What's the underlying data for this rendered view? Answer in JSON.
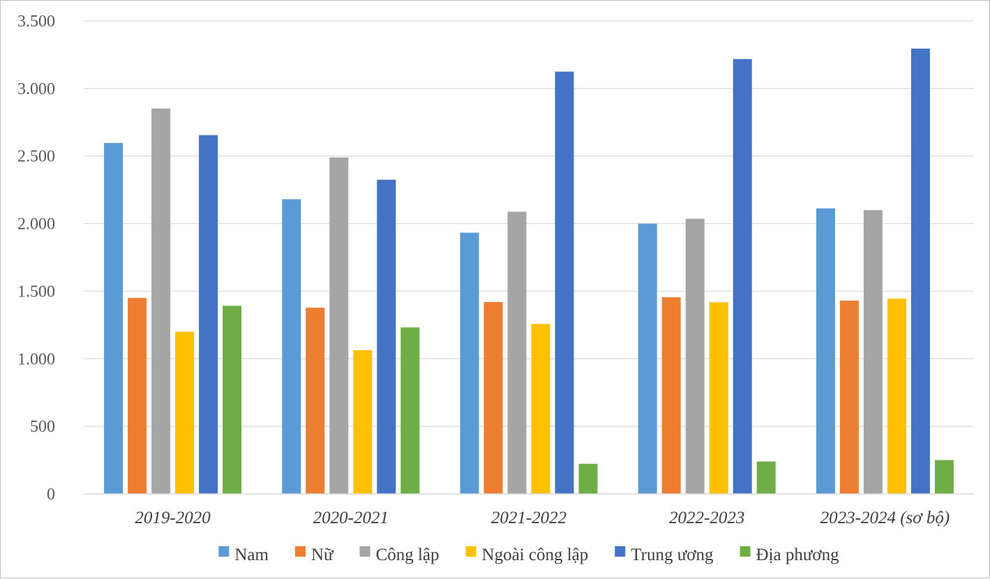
{
  "chart_data": {
    "type": "bar",
    "title": "",
    "xlabel": "",
    "ylabel": "",
    "ylim": [
      0,
      3500
    ],
    "yticks": [
      0,
      500,
      1000,
      1500,
      2000,
      2500,
      3000,
      3500
    ],
    "ytick_labels": [
      "0",
      "500",
      "1.000",
      "1.500",
      "2.000",
      "2.500",
      "3.000",
      "3.500"
    ],
    "grid": true,
    "legend_position": "bottom",
    "categories": [
      "2019-2020",
      "2020-2021",
      "2021-2022",
      "2022-2023",
      "2023-2024 (sơ bộ)"
    ],
    "series": [
      {
        "name": "Nam",
        "color": "#5B9BD5",
        "values": [
          2597,
          2181,
          1933,
          2000,
          2113
        ]
      },
      {
        "name": "Nữ",
        "color": "#ED7D31",
        "values": [
          1450,
          1378,
          1420,
          1455,
          1430
        ]
      },
      {
        "name": "Công lập",
        "color": "#A5A5A5",
        "values": [
          2852,
          2490,
          2088,
          2036,
          2100
        ]
      },
      {
        "name": "Ngoài công lập",
        "color": "#FFC000",
        "values": [
          1200,
          1063,
          1258,
          1418,
          1445
        ]
      },
      {
        "name": "Trung ương",
        "color": "#4472C4",
        "values": [
          2655,
          2325,
          3125,
          3218,
          3295
        ]
      },
      {
        "name": "Địa phương",
        "color": "#70AD47",
        "values": [
          1392,
          1232,
          223,
          240,
          250
        ]
      }
    ]
  }
}
